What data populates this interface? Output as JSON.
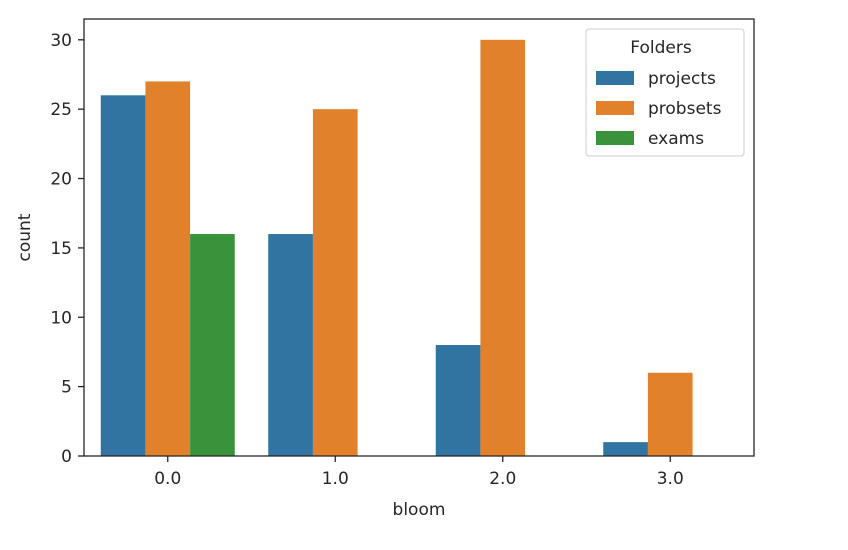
{
  "chart_data": {
    "type": "bar",
    "categories": [
      "0.0",
      "1.0",
      "2.0",
      "3.0"
    ],
    "series": [
      {
        "name": "projects",
        "color": "#3274a1",
        "values": [
          26,
          16,
          8,
          1
        ]
      },
      {
        "name": "probsets",
        "color": "#e1812c",
        "values": [
          27,
          25,
          30,
          6
        ]
      },
      {
        "name": "exams",
        "color": "#3a923a",
        "values": [
          16,
          0,
          0,
          0
        ]
      }
    ],
    "xlabel": "bloom",
    "ylabel": "count",
    "ylim": [
      0,
      31.5
    ],
    "yticks": [
      0,
      5,
      10,
      15,
      20,
      25,
      30
    ],
    "grid": false,
    "legend": {
      "title": "Folders",
      "placement": "top-right"
    }
  }
}
